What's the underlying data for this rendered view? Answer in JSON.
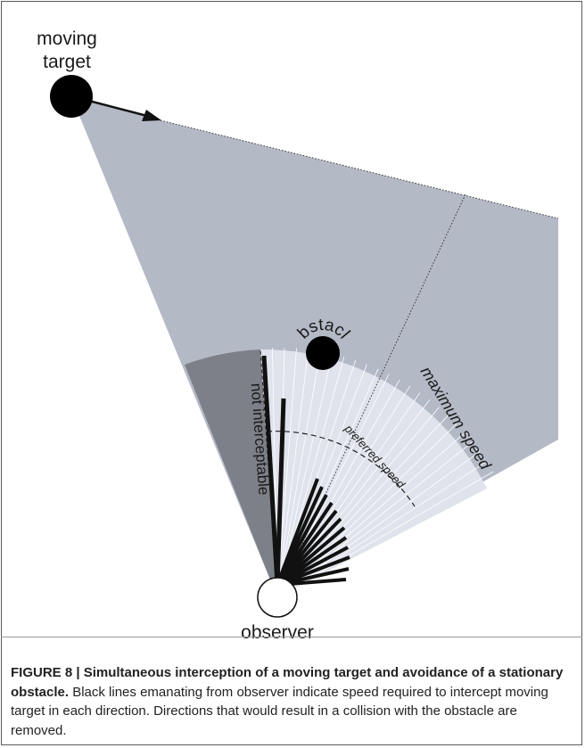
{
  "labels": {
    "moving_target_line1": "moving",
    "moving_target_line2": "target",
    "obstacle": "obstacle",
    "not_interceptable": "not interceptable",
    "maximum_speed": "maximum speed",
    "preferred_speed": "preferred speed",
    "observer": "observer"
  },
  "caption": {
    "figure_number": "FIGURE 8 | ",
    "title": "Simultaneous interception of a moving target and avoidance of a stationary obstacle.",
    "text": " Black lines emanating from observer indicate speed required to intercept moving target in each direction. Directions that would result in a collision with the obstacle are removed."
  },
  "colors": {
    "wedge_fill": "#b4b9c6",
    "not_interceptable_fill": "#7e8089",
    "speed_fan_fill": "#e0e3ec",
    "speed_lines": "#111111"
  }
}
